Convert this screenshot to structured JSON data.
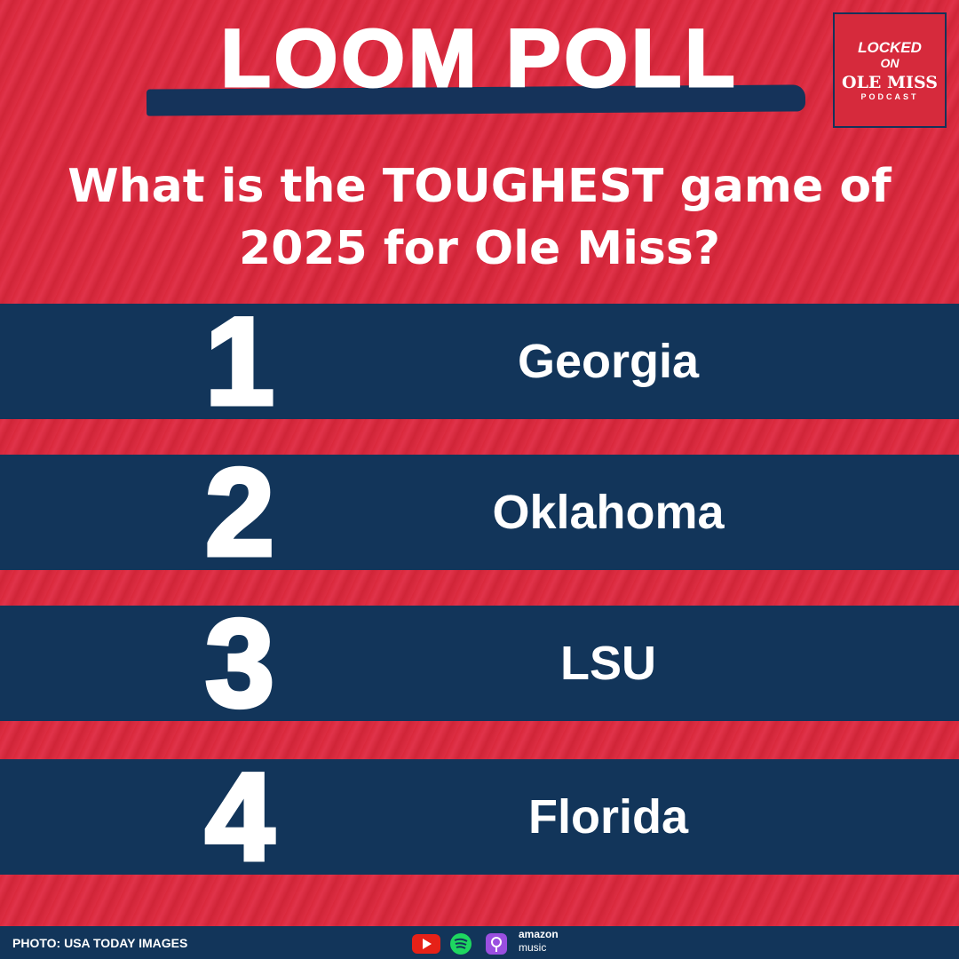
{
  "header": {
    "title": "LOOM POLL"
  },
  "logo": {
    "lines": [
      "LOCKED",
      "ON",
      "OLE MISS",
      "PODCAST"
    ]
  },
  "question": {
    "lines": [
      "What is the TOUGHEST game of",
      "2025 for Ole Miss?"
    ]
  },
  "rows": [
    {
      "rank": "1",
      "team": "Georgia"
    },
    {
      "rank": "2",
      "team": "Oklahoma"
    },
    {
      "rank": "3",
      "team": "LSU"
    },
    {
      "rank": "4",
      "team": "Florida"
    }
  ],
  "footer": {
    "credit": "PHOTO: USA TODAY IMAGES",
    "platform_text": [
      "amazon",
      "music"
    ]
  }
}
